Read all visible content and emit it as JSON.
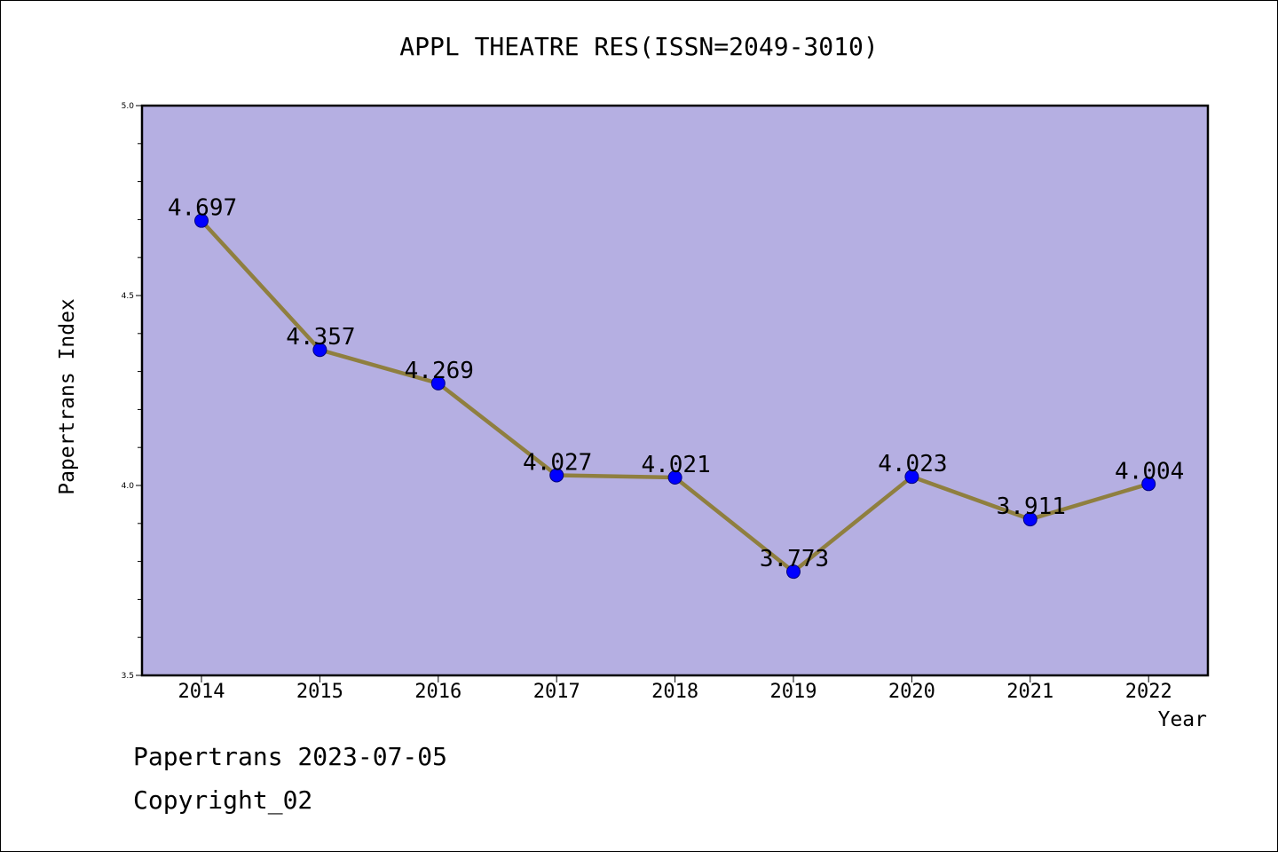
{
  "title": "APPL THEATRE RES(ISSN=2049-3010)",
  "footer": {
    "line1": "Papertrans 2023-07-05",
    "line2": "Copyright_02"
  },
  "colors": {
    "plot_bg": "#b5afe2",
    "line": "#8f7f3f",
    "marker": "#0000ff",
    "marker_edge": "#000080"
  },
  "chart_data": {
    "type": "line",
    "title": "APPL THEATRE RES(ISSN=2049-3010)",
    "xlabel": "Year",
    "ylabel": "Papertrans Index",
    "categories": [
      "2014",
      "2015",
      "2016",
      "2017",
      "2018",
      "2019",
      "2020",
      "2021",
      "2022"
    ],
    "series": [
      {
        "values": [
          4.697,
          4.357,
          4.269,
          4.027,
          4.021,
          3.773,
          4.023,
          3.911,
          4.004
        ],
        "labels": [
          "4.697",
          "4.357",
          "4.269",
          "4.027",
          "4.021",
          "3.773",
          "4.023",
          "3.911",
          "4.004"
        ]
      }
    ],
    "ylim": [
      3.5,
      5.0
    ],
    "yticks": [
      "3.5",
      "4.0",
      "4.5",
      "5.0"
    ],
    "grid": false,
    "legend": "none"
  }
}
